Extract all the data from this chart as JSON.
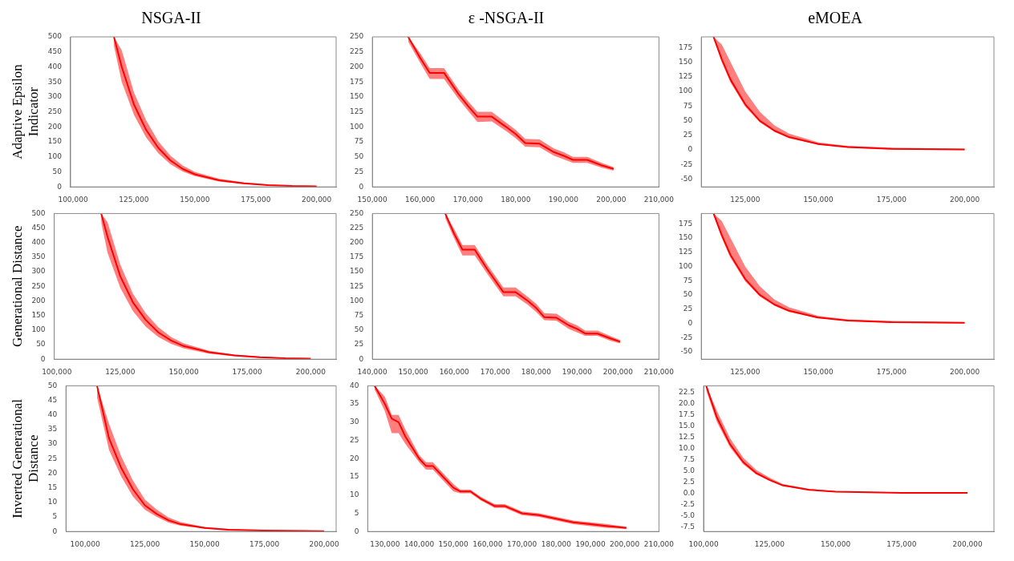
{
  "chart_data": [
    {
      "type": "line",
      "title": "NSGA-II",
      "ylabel": "Adaptive Epsilon Indicator",
      "grid": false,
      "legend": false,
      "xlim": [
        99000,
        208000
      ],
      "ylim": [
        0,
        500
      ],
      "xticks": [
        {
          "value": 100000,
          "label": "100,000"
        },
        {
          "value": 125000,
          "label": "125,000"
        },
        {
          "value": 150000,
          "label": "150,000"
        },
        {
          "value": 175000,
          "label": "175,000"
        },
        {
          "value": 200000,
          "label": "200,000"
        }
      ],
      "yticks": [
        0,
        50,
        100,
        150,
        200,
        250,
        300,
        350,
        400,
        450,
        500
      ],
      "series": [
        {
          "color": "#ff0000",
          "x": [
            116800,
            120000,
            125000,
            130000,
            135000,
            140000,
            145000,
            150000,
            160000,
            170000,
            180000,
            190000,
            200000
          ],
          "values": [
            500,
            400,
            275,
            190,
            130,
            88,
            60,
            42,
            22,
            12,
            6,
            3,
            2
          ],
          "lower": [
            470,
            350,
            240,
            165,
            112,
            75,
            51,
            36,
            18,
            10,
            5,
            2,
            1
          ],
          "upper": [
            500,
            455,
            315,
            222,
            152,
            104,
            71,
            50,
            27,
            15,
            8,
            4,
            3
          ]
        }
      ]
    },
    {
      "type": "line",
      "title": "ε -NSGA-II",
      "grid": false,
      "legend": false,
      "xlim": [
        150000,
        210000
      ],
      "ylim": [
        0,
        250
      ],
      "xticks": [
        {
          "value": 150000,
          "label": "150,000"
        },
        {
          "value": 160000,
          "label": "160,000"
        },
        {
          "value": 170000,
          "label": "170,000"
        },
        {
          "value": 180000,
          "label": "180,000"
        },
        {
          "value": 190000,
          "label": "190,000"
        },
        {
          "value": 200000,
          "label": "200,000"
        },
        {
          "value": 210000,
          "label": "210,000"
        }
      ],
      "yticks": [
        0,
        25,
        50,
        75,
        100,
        125,
        150,
        175,
        200,
        225,
        250
      ],
      "series": [
        {
          "color": "#ff0000",
          "x": [
            157500,
            160000,
            162000,
            165000,
            168000,
            170000,
            172000,
            175000,
            178000,
            180000,
            182000,
            185000,
            188000,
            190000,
            192000,
            195000,
            198000,
            200500
          ],
          "values": [
            250,
            215,
            190,
            190,
            155,
            135,
            117,
            117,
            100,
            88,
            73,
            72,
            58,
            52,
            45,
            45,
            36,
            30
          ],
          "lower": [
            242,
            207,
            180,
            180,
            147,
            127,
            108,
            109,
            93,
            81,
            67,
            66,
            52,
            46,
            40,
            40,
            32,
            27
          ],
          "upper": [
            250,
            223,
            198,
            198,
            163,
            143,
            125,
            125,
            107,
            95,
            80,
            79,
            64,
            58,
            50,
            50,
            40,
            33
          ]
        }
      ]
    },
    {
      "type": "line",
      "title": "eMOEA",
      "grid": false,
      "legend": false,
      "xlim": [
        110000,
        210000
      ],
      "ylim": [
        -63,
        193
      ],
      "xticks": [
        {
          "value": 125000,
          "label": "125,000"
        },
        {
          "value": 150000,
          "label": "150,000"
        },
        {
          "value": 175000,
          "label": "175,000"
        },
        {
          "value": 200000,
          "label": "200,000"
        }
      ],
      "yticks": [
        -50,
        -25,
        0,
        25,
        50,
        75,
        100,
        125,
        150,
        175
      ],
      "series": [
        {
          "color": "#ff0000",
          "x": [
            114200,
            117000,
            120000,
            125000,
            130000,
            135000,
            140000,
            150000,
            160000,
            175000,
            200000
          ],
          "values": [
            193,
            155,
            120,
            78,
            50,
            33,
            22,
            10,
            5,
            2,
            1
          ],
          "lower": [
            190,
            150,
            115,
            74,
            47,
            31,
            20,
            9,
            4,
            1,
            0
          ],
          "upper": [
            193,
            180,
            150,
            100,
            65,
            42,
            28,
            13,
            7,
            4,
            2
          ]
        }
      ]
    },
    {
      "type": "line",
      "ylabel": "Generational Distance",
      "grid": false,
      "legend": false,
      "xlim": [
        99000,
        210000
      ],
      "ylim": [
        0,
        500
      ],
      "xticks": [
        {
          "value": 100000,
          "label": "100,000"
        },
        {
          "value": 125000,
          "label": "125,000"
        },
        {
          "value": 150000,
          "label": "150,000"
        },
        {
          "value": 175000,
          "label": "175,000"
        },
        {
          "value": 200000,
          "label": "200,000"
        }
      ],
      "yticks": [
        0,
        50,
        100,
        150,
        200,
        250,
        300,
        350,
        400,
        450,
        500
      ],
      "series": [
        {
          "color": "#ff0000",
          "x": [
            117500,
            120000,
            125000,
            130000,
            135000,
            140000,
            145000,
            150000,
            160000,
            170000,
            180000,
            190000,
            200000
          ],
          "values": [
            500,
            420,
            285,
            195,
            135,
            92,
            64,
            45,
            24,
            13,
            7,
            3,
            2
          ],
          "lower": [
            470,
            365,
            245,
            165,
            112,
            76,
            53,
            37,
            19,
            10,
            5,
            2,
            1
          ],
          "upper": [
            500,
            470,
            325,
            225,
            158,
            110,
            76,
            54,
            29,
            16,
            9,
            5,
            3
          ]
        }
      ]
    },
    {
      "type": "line",
      "grid": false,
      "legend": false,
      "xlim": [
        140000,
        210000
      ],
      "ylim": [
        0,
        250
      ],
      "xticks": [
        {
          "value": 140000,
          "label": "140,000"
        },
        {
          "value": 150000,
          "label": "150,000"
        },
        {
          "value": 160000,
          "label": "160,000"
        },
        {
          "value": 170000,
          "label": "170,000"
        },
        {
          "value": 180000,
          "label": "180,000"
        },
        {
          "value": 190000,
          "label": "190,000"
        },
        {
          "value": 200000,
          "label": "200,000"
        },
        {
          "value": 210000,
          "label": "210,000"
        }
      ],
      "yticks": [
        0,
        25,
        50,
        75,
        100,
        125,
        150,
        175,
        200,
        225,
        250
      ],
      "series": [
        {
          "color": "#ff0000",
          "x": [
            157800,
            160000,
            162000,
            165000,
            168000,
            170000,
            172000,
            175000,
            178000,
            180000,
            182000,
            185000,
            188000,
            190000,
            192000,
            195000,
            198000,
            200500
          ],
          "values": [
            250,
            215,
            188,
            188,
            155,
            135,
            115,
            115,
            100,
            88,
            72,
            71,
            58,
            52,
            44,
            44,
            36,
            30
          ],
          "lower": [
            242,
            207,
            178,
            178,
            147,
            127,
            108,
            108,
            93,
            81,
            67,
            66,
            52,
            46,
            40,
            40,
            32,
            27
          ],
          "upper": [
            250,
            223,
            196,
            196,
            163,
            143,
            123,
            123,
            107,
            95,
            79,
            78,
            64,
            58,
            49,
            49,
            40,
            33
          ]
        }
      ]
    },
    {
      "type": "line",
      "grid": false,
      "legend": false,
      "xlim": [
        110000,
        210000
      ],
      "ylim": [
        -63,
        193
      ],
      "xticks": [
        {
          "value": 125000,
          "label": "125,000"
        },
        {
          "value": 150000,
          "label": "150,000"
        },
        {
          "value": 175000,
          "label": "175,000"
        },
        {
          "value": 200000,
          "label": "200,000"
        }
      ],
      "yticks": [
        -50,
        -25,
        0,
        25,
        50,
        75,
        100,
        125,
        150,
        175
      ],
      "series": [
        {
          "color": "#ff0000",
          "x": [
            114200,
            117000,
            120000,
            125000,
            130000,
            135000,
            140000,
            150000,
            160000,
            175000,
            200000
          ],
          "values": [
            193,
            155,
            120,
            78,
            50,
            33,
            22,
            10,
            5,
            2,
            1
          ],
          "lower": [
            190,
            150,
            115,
            74,
            47,
            31,
            20,
            9,
            4,
            1,
            0
          ],
          "upper": [
            193,
            180,
            150,
            100,
            65,
            42,
            28,
            13,
            7,
            4,
            2
          ]
        }
      ]
    },
    {
      "type": "line",
      "ylabel": "Inverted Generational Distance",
      "grid": false,
      "legend": false,
      "xlim": [
        92000,
        205000
      ],
      "ylim": [
        0,
        50
      ],
      "xticks": [
        {
          "value": 100000,
          "label": "100,000"
        },
        {
          "value": 125000,
          "label": "125,000"
        },
        {
          "value": 150000,
          "label": "150,000"
        },
        {
          "value": 175000,
          "label": "175,000"
        },
        {
          "value": 200000,
          "label": "200,000"
        }
      ],
      "yticks": [
        0,
        5,
        10,
        15,
        20,
        25,
        30,
        35,
        40,
        45,
        50
      ],
      "series": [
        {
          "color": "#ff0000",
          "x": [
            105000,
            110000,
            115000,
            120000,
            125000,
            130000,
            135000,
            140000,
            150000,
            160000,
            175000,
            200000
          ],
          "values": [
            50,
            32,
            22,
            14.5,
            9,
            6,
            3.8,
            2.5,
            1.2,
            0.6,
            0.3,
            0.1
          ],
          "lower": [
            46,
            28,
            19,
            12,
            7.5,
            5,
            3,
            2,
            1,
            0.4,
            0.2,
            0
          ],
          "upper": [
            50,
            37,
            26,
            17.5,
            11,
            7.5,
            4.8,
            3.2,
            1.6,
            0.9,
            0.5,
            0.3
          ]
        }
      ]
    },
    {
      "type": "line",
      "grid": false,
      "legend": false,
      "xlim": [
        125000,
        210000
      ],
      "ylim": [
        0,
        40
      ],
      "xticks": [
        {
          "value": 130000,
          "label": "130,000"
        },
        {
          "value": 140000,
          "label": "140,000"
        },
        {
          "value": 150000,
          "label": "150,000"
        },
        {
          "value": 160000,
          "label": "160,000"
        },
        {
          "value": 170000,
          "label": "170,000"
        },
        {
          "value": 180000,
          "label": "180,000"
        },
        {
          "value": 190000,
          "label": "190,000"
        },
        {
          "value": 200000,
          "label": "200,000"
        },
        {
          "value": 210000,
          "label": "210,000"
        }
      ],
      "yticks": [
        0,
        5,
        10,
        15,
        20,
        25,
        30,
        35,
        40
      ],
      "series": [
        {
          "color": "#ff0000",
          "x": [
            127000,
            130000,
            132000,
            134000,
            136000,
            140000,
            142000,
            144000,
            146000,
            150000,
            152000,
            155000,
            158000,
            160000,
            162000,
            165000,
            170000,
            175000,
            180000,
            185000,
            190000,
            195000,
            200500
          ],
          "values": [
            40,
            35,
            31,
            30,
            26,
            20,
            18,
            18,
            16,
            12,
            11,
            11,
            9,
            8,
            7,
            7,
            5,
            4.5,
            3.5,
            2.5,
            2,
            1.5,
            1
          ],
          "lower": [
            39,
            33,
            27,
            27,
            24,
            19,
            17,
            17,
            15,
            11,
            10.5,
            10.5,
            8.5,
            7.5,
            6.5,
            6.5,
            4.5,
            4,
            3,
            2,
            1.5,
            1,
            0.7
          ],
          "upper": [
            40,
            37,
            32,
            32,
            28,
            21,
            19,
            19,
            17,
            13,
            11.5,
            11.5,
            9.5,
            8.5,
            7.5,
            7.5,
            5.5,
            5,
            4,
            3,
            2.5,
            2,
            1.3
          ]
        }
      ]
    },
    {
      "type": "line",
      "grid": false,
      "legend": false,
      "xlim": [
        100000,
        210000
      ],
      "ylim": [
        -8.5,
        24
      ],
      "xticks": [
        {
          "value": 100000,
          "label": "100,000"
        },
        {
          "value": 125000,
          "label": "125,000"
        },
        {
          "value": 150000,
          "label": "150,000"
        },
        {
          "value": 175000,
          "label": "175,000"
        },
        {
          "value": 200000,
          "label": "200,000"
        }
      ],
      "yticks": [
        {
          "value": -7.5,
          "label": "-7.5"
        },
        {
          "value": -5,
          "label": "-5.0"
        },
        {
          "value": -2.5,
          "label": "-2.5"
        },
        {
          "value": 0,
          "label": "0.0"
        },
        {
          "value": 2.5,
          "label": "2.5"
        },
        {
          "value": 5,
          "label": "5.0"
        },
        {
          "value": 7.5,
          "label": "7.5"
        },
        {
          "value": 10,
          "label": "10.0"
        },
        {
          "value": 12.5,
          "label": "12.5"
        },
        {
          "value": 15,
          "label": "15.0"
        },
        {
          "value": 17.5,
          "label": "17.5"
        },
        {
          "value": 20,
          "label": "20.0"
        },
        {
          "value": 22.5,
          "label": "22.5"
        }
      ],
      "series": [
        {
          "color": "#ff0000",
          "x": [
            101000,
            105000,
            110000,
            115000,
            120000,
            125000,
            130000,
            140000,
            150000,
            175000,
            200000
          ],
          "values": [
            24,
            17,
            11,
            7,
            4.5,
            3,
            1.8,
            0.8,
            0.4,
            0.1,
            0.1
          ],
          "lower": [
            23,
            16,
            10.3,
            6.5,
            4.2,
            2.8,
            1.6,
            0.7,
            0.3,
            0.1,
            0.1
          ],
          "upper": [
            24,
            18.5,
            12.3,
            8,
            5.2,
            3.5,
            2.1,
            1,
            0.5,
            0.2,
            0.2
          ]
        }
      ]
    }
  ]
}
